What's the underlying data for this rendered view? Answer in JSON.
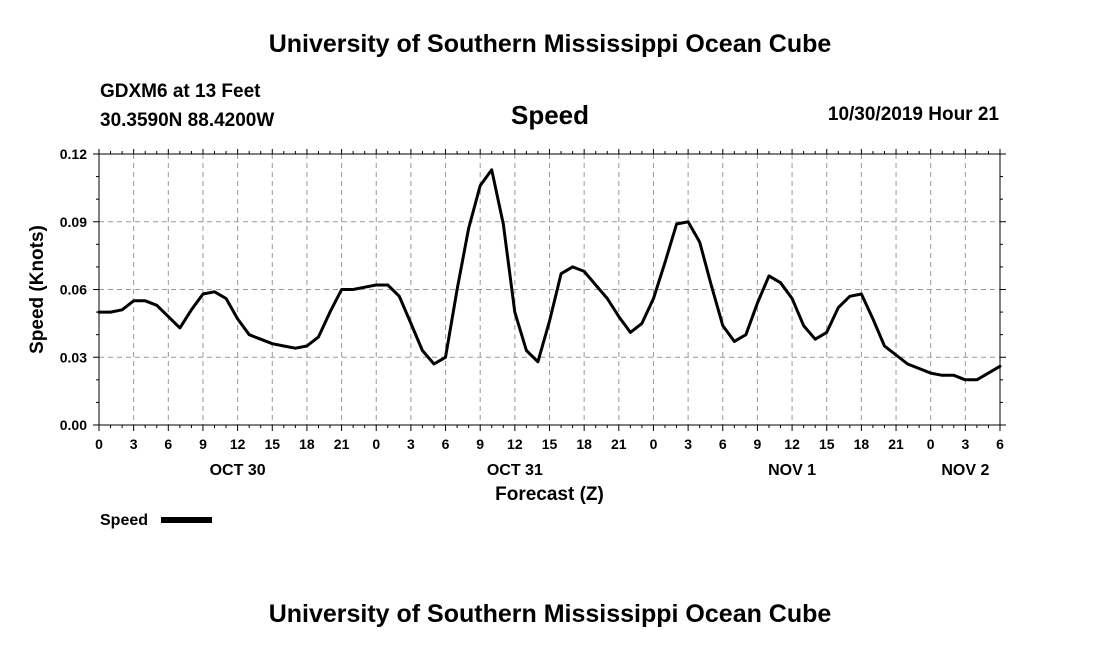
{
  "header": {
    "title": "University of Southern Mississippi Ocean Cube"
  },
  "footer": {
    "title": "University of Southern Mississippi Ocean Cube"
  },
  "station": {
    "name": "GDXM6 at 13 Feet",
    "coords": "30.3590N 88.4200W"
  },
  "valid_time": "10/30/2019 Hour 21",
  "chart_data": {
    "type": "line",
    "title": "Speed",
    "xlabel": "Forecast (Z)",
    "ylabel": "Speed (Knots)",
    "xlim": [
      0,
      78
    ],
    "ylim": [
      0,
      0.12
    ],
    "grid": true,
    "legend": {
      "position": "bottom-left",
      "entries": [
        "Speed"
      ]
    },
    "y_ticks": [
      0.0,
      0.03,
      0.06,
      0.09,
      0.12
    ],
    "y_tick_labels": [
      "0.00",
      "0.03",
      "0.06",
      "0.09",
      "0.12"
    ],
    "x_ticks": [
      0,
      3,
      6,
      9,
      12,
      15,
      18,
      21,
      24,
      27,
      30,
      33,
      36,
      39,
      42,
      45,
      48,
      51,
      54,
      57,
      60,
      63,
      66,
      69,
      72,
      75,
      78
    ],
    "x_tick_labels": [
      "0",
      "3",
      "6",
      "9",
      "12",
      "15",
      "18",
      "21",
      "0",
      "3",
      "6",
      "9",
      "12",
      "15",
      "18",
      "21",
      "0",
      "3",
      "6",
      "9",
      "12",
      "15",
      "18",
      "21",
      "0",
      "3",
      "6"
    ],
    "day_labels": [
      {
        "x": 12,
        "label": "OCT 30"
      },
      {
        "x": 36,
        "label": "OCT 31"
      },
      {
        "x": 60,
        "label": "NOV 1"
      },
      {
        "x": 75,
        "label": "NOV 2"
      }
    ],
    "series": [
      {
        "name": "Speed",
        "x": [
          0,
          1,
          2,
          3,
          4,
          5,
          6,
          7,
          8,
          9,
          10,
          11,
          12,
          13,
          14,
          15,
          16,
          17,
          18,
          19,
          20,
          21,
          22,
          23,
          24,
          25,
          26,
          27,
          28,
          29,
          30,
          31,
          32,
          33,
          34,
          35,
          36,
          37,
          38,
          39,
          40,
          41,
          42,
          43,
          44,
          45,
          46,
          47,
          48,
          49,
          50,
          51,
          52,
          53,
          54,
          55,
          56,
          57,
          58,
          59,
          60,
          61,
          62,
          63,
          64,
          65,
          66,
          67,
          68,
          69,
          70,
          71,
          72,
          73,
          74,
          75,
          76,
          77,
          78
        ],
        "values": [
          0.05,
          0.05,
          0.051,
          0.055,
          0.055,
          0.053,
          0.048,
          0.043,
          0.051,
          0.058,
          0.059,
          0.056,
          0.047,
          0.04,
          0.038,
          0.036,
          0.035,
          0.034,
          0.035,
          0.039,
          0.05,
          0.06,
          0.06,
          0.061,
          0.062,
          0.062,
          0.057,
          0.045,
          0.033,
          0.027,
          0.03,
          0.06,
          0.087,
          0.106,
          0.113,
          0.089,
          0.05,
          0.033,
          0.028,
          0.046,
          0.067,
          0.07,
          0.068,
          0.062,
          0.056,
          0.048,
          0.041,
          0.045,
          0.056,
          0.072,
          0.089,
          0.09,
          0.081,
          0.062,
          0.044,
          0.037,
          0.04,
          0.054,
          0.066,
          0.063,
          0.056,
          0.044,
          0.038,
          0.041,
          0.052,
          0.057,
          0.058,
          0.047,
          0.035,
          0.031,
          0.027,
          0.025,
          0.023,
          0.022,
          0.022,
          0.02,
          0.02,
          0.023,
          0.026
        ]
      }
    ]
  }
}
